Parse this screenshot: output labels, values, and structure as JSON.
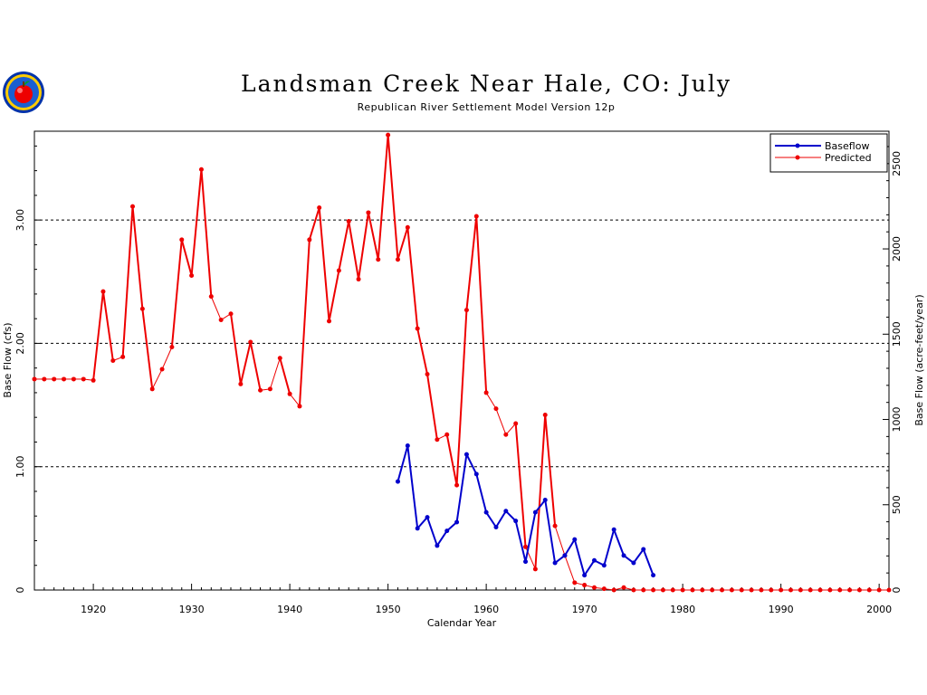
{
  "chart_data": {
    "type": "line",
    "title": "Landsman Creek Near Hale, CO: July",
    "subtitle": "Republican River Settlement Model Version 12p",
    "xlabel": "Calendar Year",
    "ylabel_left": "Base Flow (cfs)",
    "ylabel_right": "Base Flow (acre-feet/year)",
    "xlim": [
      1914,
      2001
    ],
    "ylim_left": [
      0,
      3.72
    ],
    "ylim_right": [
      0,
      2690
    ],
    "x_ticks": [
      1920,
      1930,
      1940,
      1950,
      1960,
      1970,
      1980,
      1990,
      2000
    ],
    "y_ticks_left": [
      {
        "value": 0,
        "label": "0"
      },
      {
        "value": 1,
        "label": "1.00"
      },
      {
        "value": 2,
        "label": "2.00"
      },
      {
        "value": 3,
        "label": "3.00"
      }
    ],
    "y_ticks_right": [
      {
        "value": 0,
        "label": "0"
      },
      {
        "value": 500,
        "label": "500"
      },
      {
        "value": 1000,
        "label": "1000"
      },
      {
        "value": 1500,
        "label": "1500"
      },
      {
        "value": 2000,
        "label": "2000"
      },
      {
        "value": 2500,
        "label": "2500"
      }
    ],
    "grid_lines_left": [
      1,
      2,
      3
    ],
    "legend_position": "top-right",
    "series": [
      {
        "name": "Baseflow",
        "color": "#0000cc",
        "x": [
          1951,
          1952,
          1953,
          1954,
          1955,
          1956,
          1957,
          1958,
          1959,
          1960,
          1961,
          1962,
          1963,
          1964,
          1965,
          1966,
          1967,
          1968,
          1969,
          1970,
          1971,
          1972,
          1973,
          1974,
          1975,
          1976,
          1977
        ],
        "values": [
          0.88,
          1.17,
          0.5,
          0.59,
          0.36,
          0.48,
          0.55,
          1.1,
          0.94,
          0.63,
          0.51,
          0.64,
          0.56,
          0.23,
          0.63,
          0.73,
          0.22,
          0.28,
          0.41,
          0.12,
          0.24,
          0.2,
          0.49,
          0.28,
          0.22,
          0.33,
          0.12
        ]
      },
      {
        "name": "Predicted",
        "color": "#ee0000",
        "x": [
          1914,
          1915,
          1916,
          1917,
          1918,
          1919,
          1920,
          1921,
          1922,
          1923,
          1924,
          1925,
          1926,
          1927,
          1928,
          1929,
          1930,
          1931,
          1932,
          1933,
          1934,
          1935,
          1936,
          1937,
          1938,
          1939,
          1940,
          1941,
          1942,
          1943,
          1944,
          1945,
          1946,
          1947,
          1948,
          1949,
          1950,
          1951,
          1952,
          1953,
          1954,
          1955,
          1956,
          1957,
          1958,
          1959,
          1960,
          1961,
          1962,
          1963,
          1964,
          1965,
          1966,
          1967,
          1968,
          1969,
          1970,
          1971,
          1972,
          1973,
          1974,
          1975,
          1976,
          1977,
          1978,
          1979,
          1980,
          1981,
          1982,
          1983,
          1984,
          1985,
          1986,
          1987,
          1988,
          1989,
          1990,
          1991,
          1992,
          1993,
          1994,
          1995,
          1996,
          1997,
          1998,
          1999,
          2000,
          2001
        ],
        "values": [
          1.71,
          1.71,
          1.71,
          1.71,
          1.71,
          1.71,
          1.7,
          2.42,
          1.86,
          1.89,
          3.11,
          2.28,
          1.63,
          1.79,
          1.97,
          2.84,
          2.55,
          3.41,
          2.38,
          2.19,
          2.24,
          1.67,
          2.01,
          1.62,
          1.63,
          1.88,
          1.59,
          1.49,
          2.84,
          3.1,
          2.18,
          2.59,
          2.99,
          2.52,
          3.06,
          2.68,
          3.69,
          2.68,
          2.94,
          2.12,
          1.75,
          1.22,
          1.26,
          0.85,
          2.27,
          3.03,
          1.6,
          1.47,
          1.26,
          1.35,
          0.35,
          0.17,
          1.42,
          0.52,
          0.28,
          0.06,
          0.04,
          0.02,
          0.01,
          0.0,
          0.02,
          0.0,
          0.0,
          0.0,
          0.0,
          0.0,
          0.0,
          0.0,
          0.0,
          0.0,
          0.0,
          0.0,
          0.0,
          0.0,
          0.0,
          0.0,
          0.0,
          0.0,
          0.0,
          0.0,
          0.0,
          0.0,
          0.0,
          0.0,
          0.0,
          0.0,
          0.0,
          0.0
        ]
      }
    ]
  },
  "logo": {
    "icon": "apple-seal-logo",
    "colors": [
      "#0033aa",
      "#ffcc00",
      "#ee0000",
      "#009933"
    ]
  }
}
